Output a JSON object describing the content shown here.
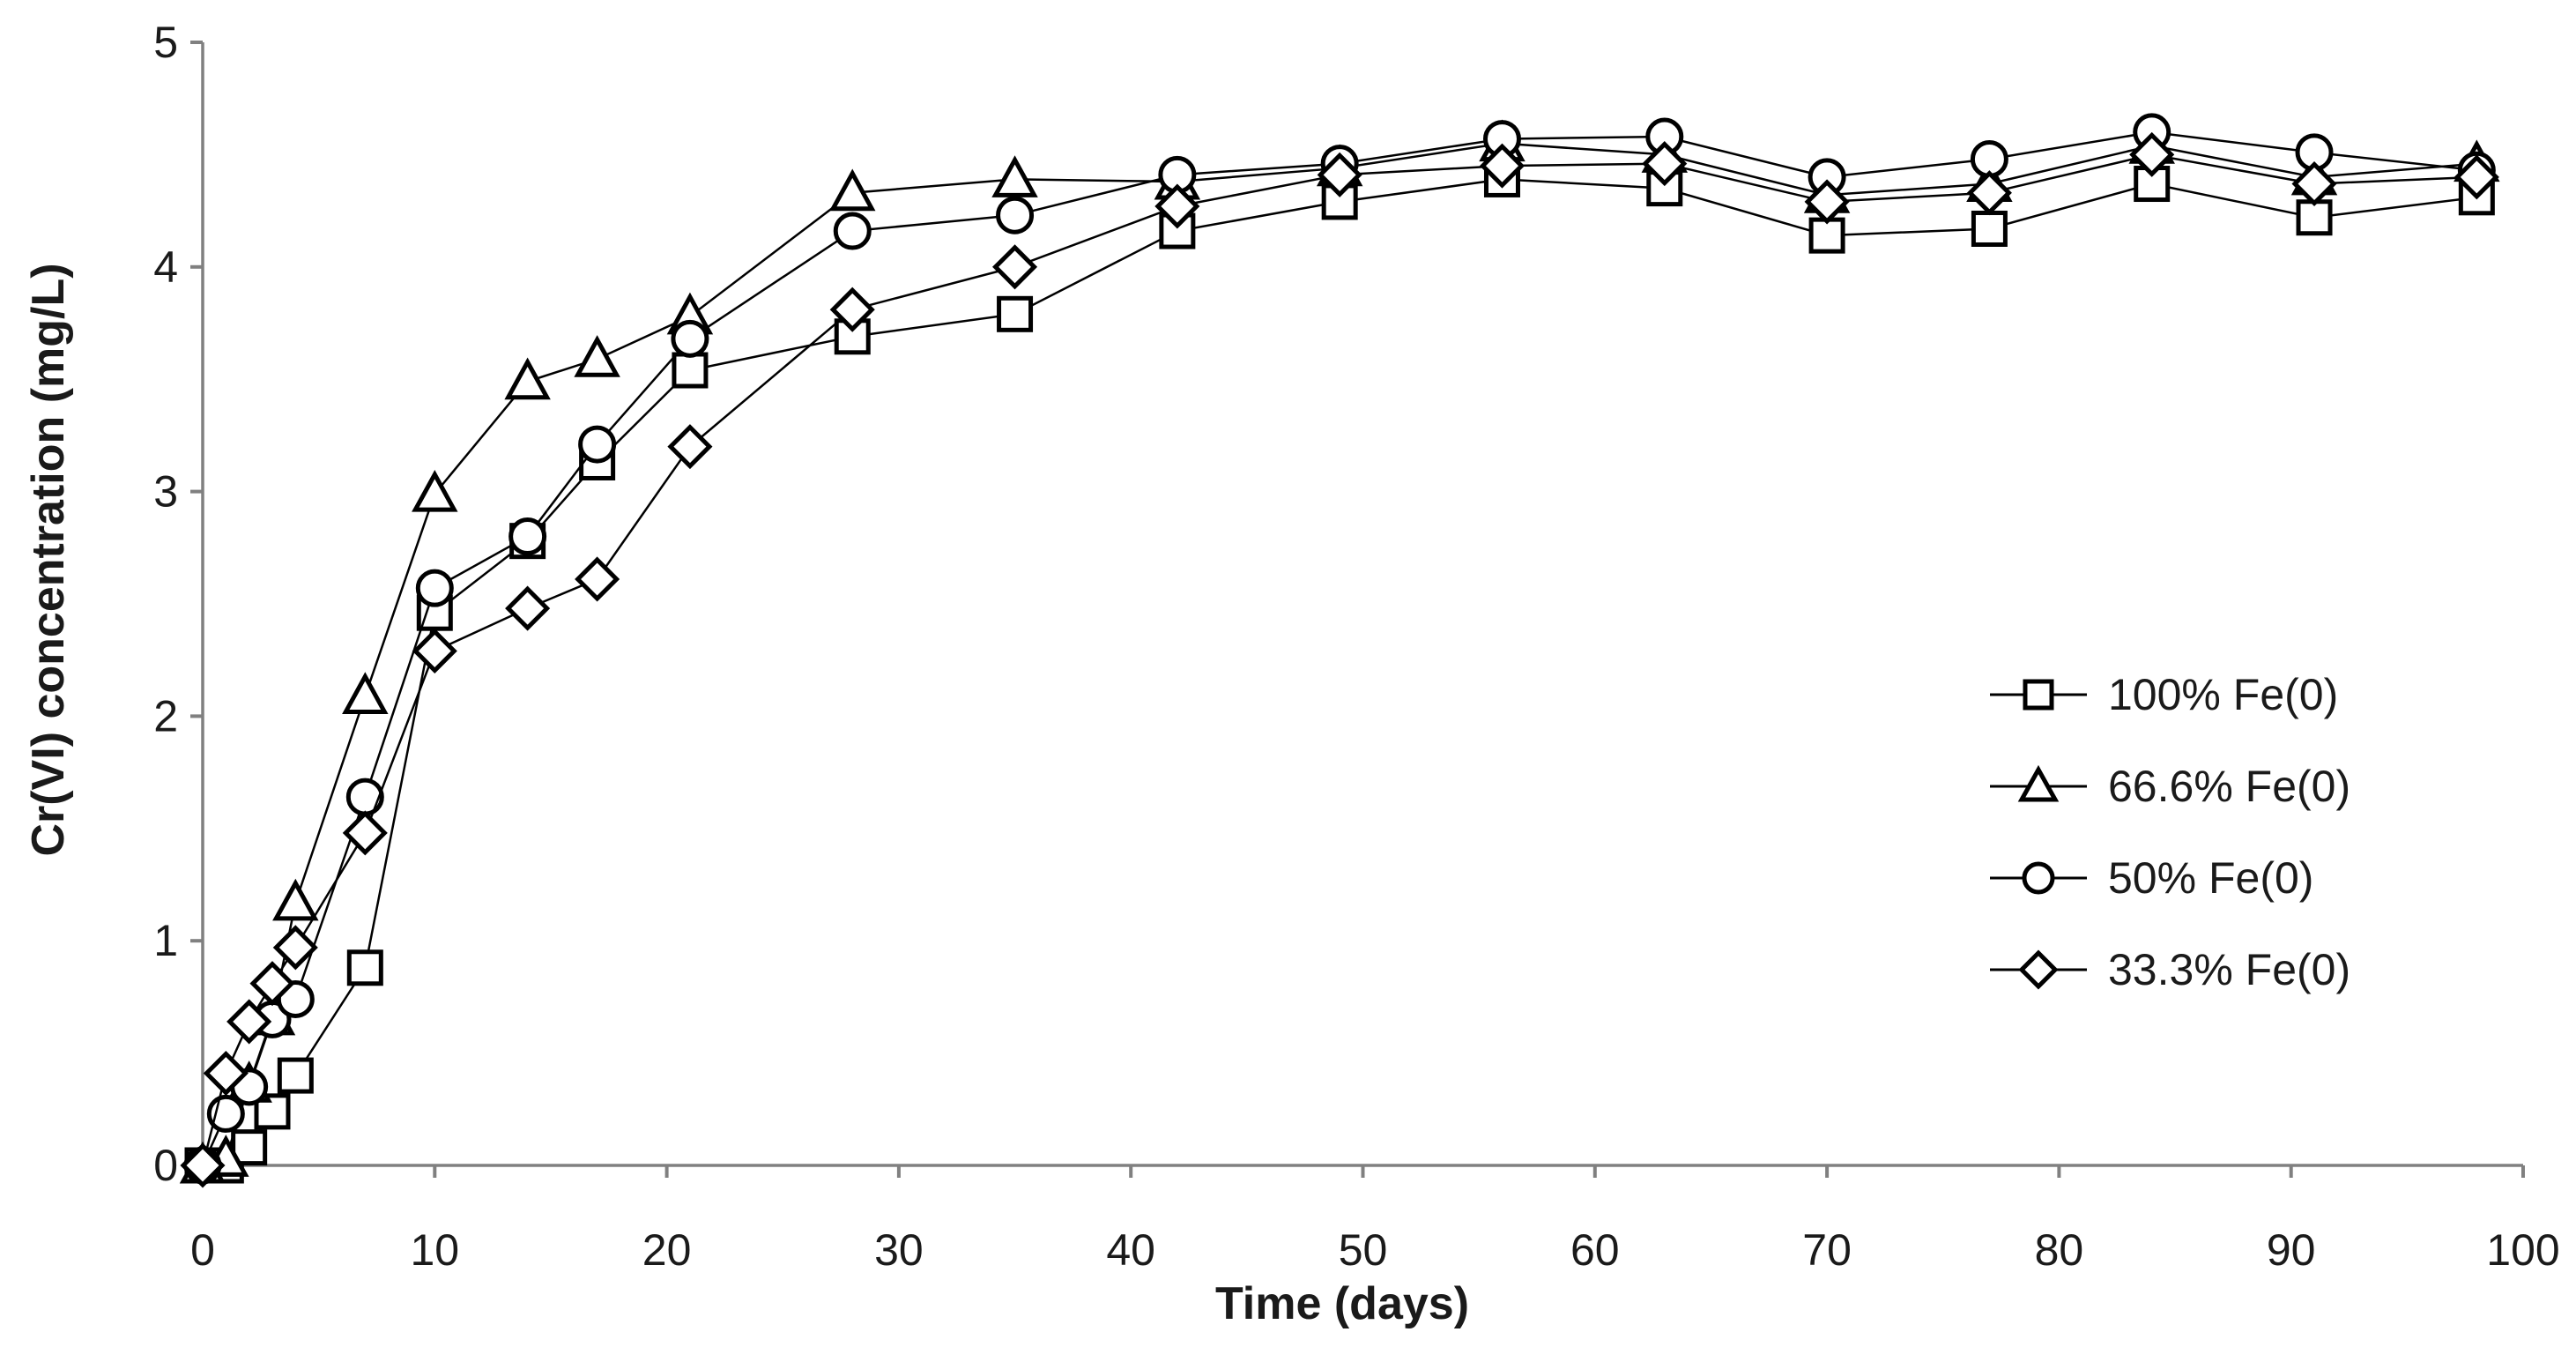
{
  "chart_data": {
    "type": "line",
    "title": "",
    "xlabel": "Time (days)",
    "ylabel": "Cr(VI) concentration (mg/L)",
    "xlim": [
      0,
      100
    ],
    "ylim": [
      0,
      5
    ],
    "x_ticks": [
      0,
      10,
      20,
      30,
      40,
      50,
      60,
      70,
      80,
      90,
      100
    ],
    "y_ticks": [
      0,
      1,
      2,
      3,
      4,
      5
    ],
    "grid": false,
    "legend_position": "middle-right",
    "axis_color": "#808080",
    "line_color": "#000000",
    "marker_fill": "#ffffff",
    "x": [
      0,
      1,
      2,
      3,
      4,
      7,
      10,
      14,
      17,
      21,
      28,
      35,
      42,
      49,
      56,
      63,
      70,
      77,
      84,
      91,
      98
    ],
    "series": [
      {
        "name": "100% Fe(0)",
        "marker": "square",
        "values": [
          0,
          0,
          0.08,
          0.24,
          0.4,
          0.88,
          2.46,
          2.78,
          3.13,
          3.54,
          3.69,
          3.79,
          4.16,
          4.29,
          4.39,
          4.35,
          4.14,
          4.17,
          4.37,
          4.22,
          4.31
        ]
      },
      {
        "name": "66.6% Fe(0)",
        "marker": "triangle",
        "values": [
          0,
          0.03,
          0.36,
          0.66,
          1.17,
          2.09,
          2.99,
          3.49,
          3.59,
          3.78,
          4.33,
          4.39,
          4.38,
          4.44,
          4.55,
          4.5,
          4.32,
          4.37,
          4.54,
          4.4,
          4.46
        ]
      },
      {
        "name": "50% Fe(0)",
        "marker": "circle",
        "values": [
          0,
          0.23,
          0.35,
          0.65,
          0.74,
          1.64,
          2.57,
          2.8,
          3.21,
          3.68,
          4.16,
          4.23,
          4.41,
          4.46,
          4.57,
          4.58,
          4.4,
          4.48,
          4.6,
          4.51,
          4.43
        ]
      },
      {
        "name": "33.3% Fe(0)",
        "marker": "diamond",
        "values": [
          0,
          0.41,
          0.64,
          0.81,
          0.97,
          1.48,
          2.29,
          2.48,
          2.61,
          3.2,
          3.81,
          4.0,
          4.27,
          4.41,
          4.45,
          4.46,
          4.29,
          4.33,
          4.5,
          4.37,
          4.4
        ]
      }
    ]
  }
}
